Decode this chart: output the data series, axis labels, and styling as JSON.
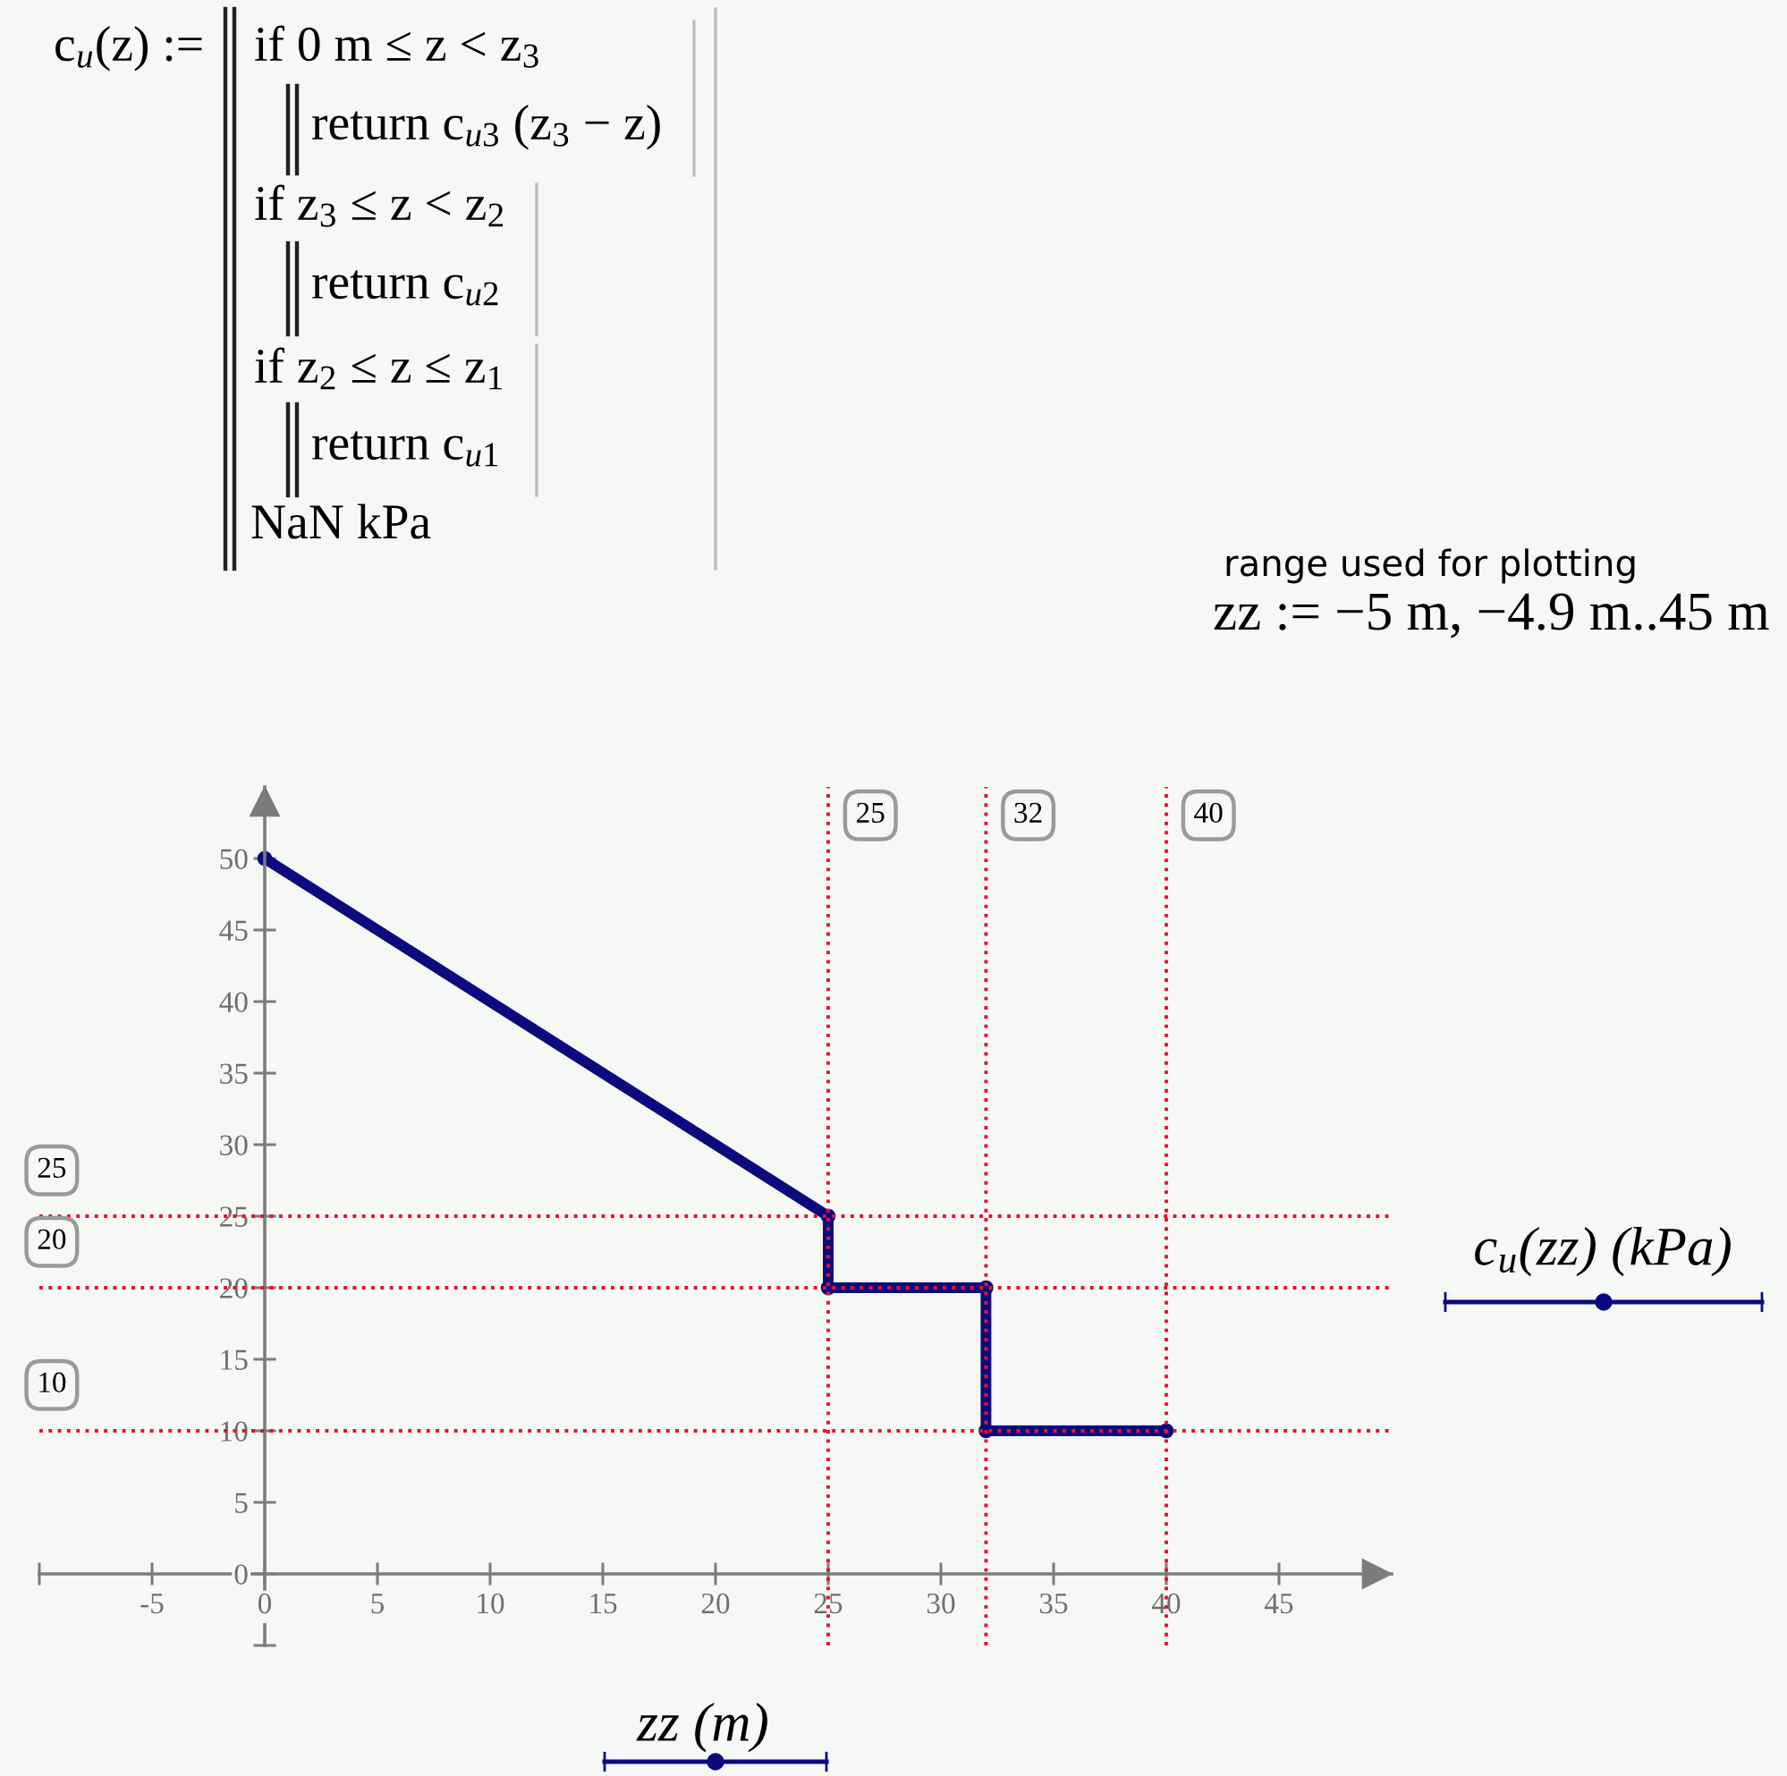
{
  "chart_data": {
    "type": "line",
    "x": [
      0,
      25,
      25,
      32,
      32,
      40
    ],
    "series": [
      {
        "color": "#0b0b7e",
        "values": [
          50,
          25,
          20,
          20,
          10,
          10
        ]
      }
    ],
    "xlim": [
      -10,
      50
    ],
    "ylim": [
      -5,
      55
    ],
    "xticks": [
      {
        "value": -10,
        "label": null
      },
      -5,
      0,
      5,
      10,
      15,
      20,
      25,
      30,
      35,
      40,
      45
    ],
    "yticks": [
      {
        "value": -5,
        "label": null
      },
      0,
      5,
      10,
      15,
      20,
      25,
      30,
      35,
      40,
      45,
      50
    ],
    "xlabel": "zz (m)",
    "ylabel": "c$_{u}$(zz) (kPa)",
    "marker": "circle",
    "line_style": "solid",
    "ref_lines": [
      {
        "axis": "x",
        "value": 25,
        "label": "25",
        "color": "#e8112d",
        "line_style": "dotted"
      },
      {
        "axis": "x",
        "value": 32,
        "label": "32",
        "color": "#e8112d",
        "line_style": "dotted"
      },
      {
        "axis": "x",
        "value": 40,
        "label": "40",
        "color": "#e8112d",
        "line_style": "dotted"
      },
      {
        "axis": "y",
        "value": 25,
        "label": "25",
        "color": "#e8112d",
        "line_style": "dotted"
      },
      {
        "axis": "y",
        "value": 20,
        "label": "20",
        "color": "#e8112d",
        "line_style": "dotted"
      },
      {
        "axis": "y",
        "value": 10,
        "label": "10",
        "color": "#e8112d",
        "line_style": "dotted"
      }
    ],
    "annotations": [
      "c$_{u}$(z) :=",
      "if 0 m ≤ z < z$_{3}$",
      "return c$_{u3}$ (z$_{3}$ − z)",
      "if z$_{3}$ ≤ z < z$_{2}$",
      "return c$_{u2}$",
      "if z$_{2}$ ≤ z ≤ z$_{1}$",
      "return c$_{u1}$",
      "NaN kPa",
      "range used for plotting",
      "zz := −5 m, −4.9 m..45 m"
    ]
  }
}
